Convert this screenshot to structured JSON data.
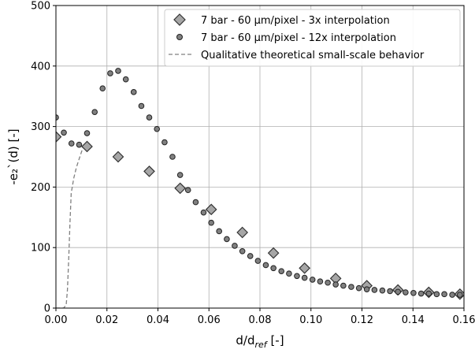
{
  "chart_data": {
    "type": "scatter",
    "xlim": [
      0,
      0.16
    ],
    "ylim": [
      0,
      500
    ],
    "xticks": [
      "0.00",
      "0.02",
      "0.04",
      "0.06",
      "0.08",
      "0.10",
      "0.12",
      "0.14",
      "0.16"
    ],
    "yticks": [
      "0",
      "100",
      "200",
      "300",
      "400",
      "500"
    ],
    "xlabel": {
      "main": "d/d",
      "sub": "ref",
      "tail": " [-]"
    },
    "ylabel": "-e₂`(d) [-]",
    "grid": true,
    "legend_position": "top-right",
    "series": [
      {
        "name": "7 bar - 60 µm/pixel -  3x  interpolation",
        "marker": "diamond",
        "color": "#a6a6a6",
        "x": [
          0.0,
          0.0122,
          0.0244,
          0.0366,
          0.0487,
          0.0609,
          0.0731,
          0.0853,
          0.0975,
          0.1097,
          0.1219,
          0.1341,
          0.1462,
          0.1584
        ],
        "y": [
          283,
          267,
          250,
          226,
          198,
          163,
          125,
          91,
          66,
          49,
          37,
          30,
          26,
          23
        ]
      },
      {
        "name": "7 bar - 60 µm/pixel - 12x interpolation",
        "marker": "circle",
        "color": "#808080",
        "x": [
          0.0,
          0.0031,
          0.0061,
          0.0091,
          0.0122,
          0.0152,
          0.0183,
          0.0213,
          0.0244,
          0.0274,
          0.0305,
          0.0335,
          0.0366,
          0.0396,
          0.0426,
          0.0457,
          0.0487,
          0.0518,
          0.0548,
          0.0579,
          0.0609,
          0.064,
          0.067,
          0.0701,
          0.0731,
          0.0762,
          0.0792,
          0.0823,
          0.0853,
          0.0884,
          0.0914,
          0.0945,
          0.0975,
          0.1006,
          0.1036,
          0.1066,
          0.1097,
          0.1127,
          0.1158,
          0.1188,
          0.1219,
          0.1249,
          0.128,
          0.131,
          0.1341,
          0.1371,
          0.1402,
          0.1432,
          0.1462,
          0.1493,
          0.1523,
          0.1554,
          0.1584
        ],
        "y": [
          315,
          290,
          272,
          270,
          289,
          324,
          363,
          388,
          392,
          378,
          357,
          334,
          315,
          296,
          274,
          250,
          220,
          195,
          175,
          158,
          141,
          127,
          114,
          103,
          94,
          86,
          78,
          71,
          66,
          61,
          57,
          53,
          50,
          47,
          44,
          42,
          39,
          37,
          35,
          33,
          31,
          30,
          29,
          28,
          27,
          26,
          25,
          24,
          24,
          23,
          23,
          22,
          22
        ]
      },
      {
        "name": "Qualitative theoretical small-scale behavior",
        "style": "dashed",
        "color": "#808080",
        "x": [
          0.0,
          0.003,
          0.004,
          0.0045,
          0.005,
          0.0055,
          0.006,
          0.007,
          0.008,
          0.009,
          0.01,
          0.011
        ],
        "y": [
          0,
          0,
          5,
          30,
          80,
          140,
          190,
          215,
          232,
          245,
          258,
          270
        ]
      }
    ]
  }
}
